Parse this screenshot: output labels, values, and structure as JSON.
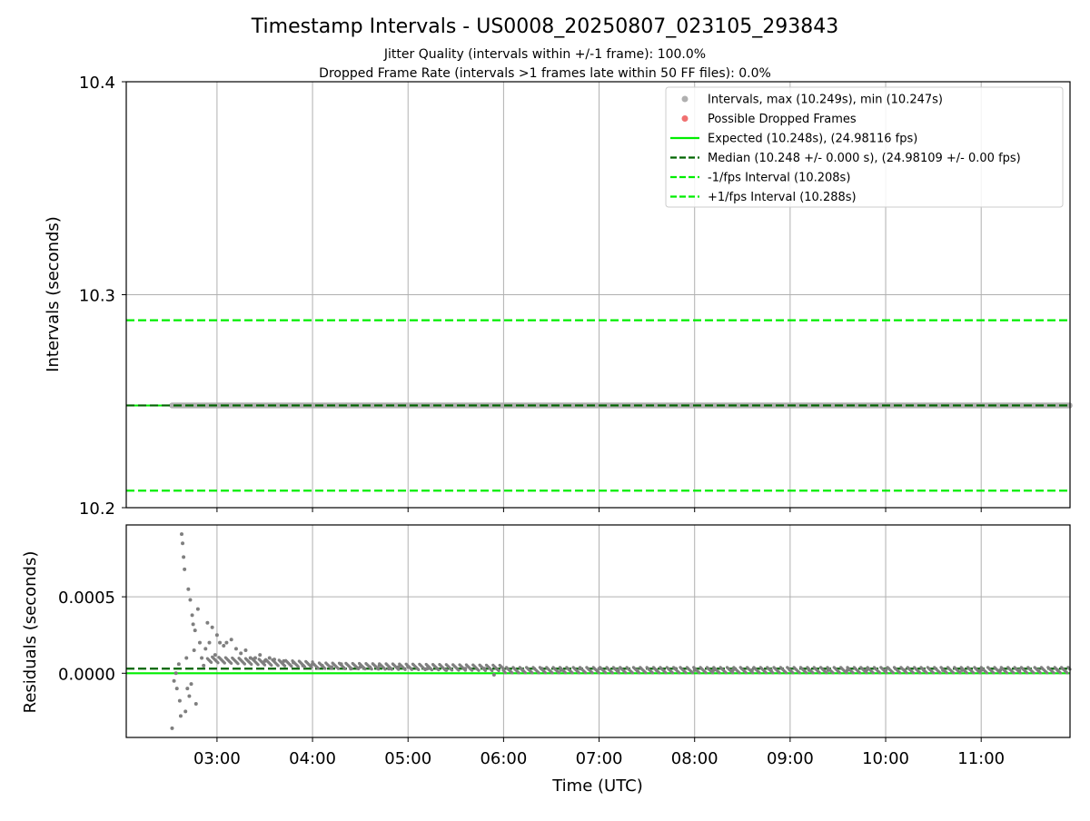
{
  "header": {
    "title": "Timestamp Intervals - US0008_20250807_023105_293843",
    "subtitle_1": "Jitter Quality (intervals within +/-1 frame): 100.0%",
    "subtitle_2": "Dropped Frame Rate (intervals >1 frames late within 50 FF files): 0.0%"
  },
  "colors": {
    "points": "#7f7f7f",
    "points_legend": "#b0b0b0",
    "dropped": "#f07070",
    "expected": "#00ee00",
    "median": "#006400",
    "fps_band": "#00ee00"
  },
  "chart_data": [
    {
      "type": "scatter",
      "ylabel": "Intervals (seconds)",
      "ylim": [
        10.2,
        10.4
      ],
      "xlim": [
        2.05,
        11.93
      ],
      "yticks": [
        10.2,
        10.3,
        10.4
      ],
      "ytick_labels": [
        "10.2",
        "10.3",
        "10.4"
      ],
      "grid": true,
      "legend_placement": "top-right",
      "legend": [
        {
          "label": "Intervals, max (10.249s), min (10.247s)",
          "kind": "marker",
          "color": "#b0b0b0"
        },
        {
          "label": "Possible Dropped Frames",
          "kind": "marker",
          "color": "#f07070"
        },
        {
          "label": "Expected (10.248s), (24.98116 fps)",
          "kind": "solid",
          "color": "#00ee00"
        },
        {
          "label": "Median (10.248 +/- 0.000 s), (24.98109 +/- 0.00 fps)",
          "kind": "dashed",
          "color": "#006400"
        },
        {
          "label": "-1/fps Interval (10.208s)",
          "kind": "dashed",
          "color": "#00ee00"
        },
        {
          "label": "+1/fps Interval (10.288s)",
          "kind": "dashed",
          "color": "#00ee00"
        }
      ],
      "lines": {
        "expected": 10.248,
        "median": 10.248,
        "minus_fps": 10.208,
        "plus_fps": 10.288
      },
      "series": [
        {
          "name": "Intervals",
          "x_range": [
            2.53,
            11.93
          ],
          "y_min": 10.247,
          "y_max": 10.249
        }
      ]
    },
    {
      "type": "scatter",
      "xlabel": "Time (UTC)",
      "ylabel": "Residuals (seconds)",
      "ylim": [
        -0.00042,
        0.00097
      ],
      "xlim": [
        2.05,
        11.93
      ],
      "yticks": [
        0.0,
        0.0005
      ],
      "ytick_labels": [
        "0.0000",
        "0.0005"
      ],
      "xticks": [
        3,
        4,
        5,
        6,
        7,
        8,
        9,
        10,
        11
      ],
      "xtick_labels": [
        "03:00",
        "04:00",
        "05:00",
        "06:00",
        "07:00",
        "08:00",
        "09:00",
        "10:00",
        "11:00"
      ],
      "grid": true,
      "lines": {
        "expected": 0.0,
        "median": 3e-05
      },
      "series": [
        {
          "name": "Residuals",
          "x": [
            2.53,
            2.55,
            2.57,
            2.58,
            2.6,
            2.61,
            2.62,
            2.63,
            2.64,
            2.65,
            2.66,
            2.67,
            2.68,
            2.69,
            2.7,
            2.71,
            2.72,
            2.73,
            2.74,
            2.75,
            2.76,
            2.77,
            2.78,
            2.8,
            2.82,
            2.84,
            2.86,
            2.88,
            2.9,
            2.92,
            2.95,
            2.98,
            3.0,
            3.03,
            3.07,
            3.1,
            3.15,
            3.2,
            3.25,
            3.3,
            3.35,
            3.4,
            3.45,
            3.5,
            3.55,
            3.6,
            3.7,
            3.8,
            3.9,
            4.0,
            4.1,
            4.2,
            4.3,
            4.4,
            4.5,
            4.6,
            4.7,
            4.8,
            4.9,
            5.0,
            5.2,
            5.4,
            5.6,
            5.8,
            5.9,
            6.0,
            6.2,
            6.4,
            6.6,
            6.8,
            7.0,
            7.2,
            7.4,
            7.6,
            7.8,
            8.0,
            8.2,
            8.4,
            8.6,
            8.8,
            9.0,
            9.2,
            9.4,
            9.6,
            9.8,
            10.0,
            10.2,
            10.4,
            10.6,
            10.8,
            11.0,
            11.2,
            11.4,
            11.6,
            11.8
          ],
          "y": [
            -0.00036,
            -5e-05,
            0.0,
            -0.0001,
            6e-05,
            -0.00018,
            -0.00028,
            0.00091,
            0.00085,
            0.00076,
            0.00068,
            -0.00025,
            0.0001,
            -0.0001,
            0.00055,
            -0.00015,
            0.00048,
            -7e-05,
            0.00038,
            0.00032,
            0.00015,
            0.00028,
            -0.0002,
            0.00042,
            0.0002,
            0.0001,
            5e-05,
            0.00016,
            0.00033,
            0.0002,
            0.0003,
            0.00012,
            0.00025,
            0.0002,
            0.00018,
            0.0002,
            0.00022,
            0.00016,
            0.00013,
            0.00015,
            0.0001,
            0.0001,
            0.00012,
            8e-05,
            0.0001,
            9e-05,
            8e-05,
            7e-05,
            5e-05,
            6e-05,
            5e-05,
            4e-05,
            6e-05,
            3e-05,
            4e-05,
            4e-05,
            5e-05,
            3e-05,
            4e-05,
            4e-05,
            3e-05,
            2e-05,
            3e-05,
            3e-05,
            -1e-05,
            2e-05,
            2e-05,
            3e-05,
            2e-05,
            3e-05,
            3e-05,
            2e-05,
            2e-05,
            2e-05,
            3e-05,
            2e-05,
            2e-05,
            2e-05,
            2e-05,
            2e-05,
            2e-05,
            2e-05,
            2e-05,
            2e-05,
            2e-05,
            2e-05,
            2e-05,
            2e-05,
            2e-05,
            2e-05,
            2e-05,
            2e-05,
            2e-05,
            2e-05,
            2e-05
          ]
        }
      ]
    }
  ]
}
